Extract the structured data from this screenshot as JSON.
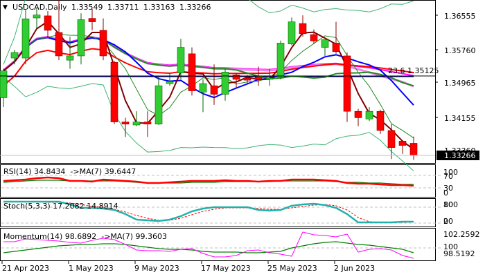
{
  "header": {
    "symbol": "USDCAD,Daily",
    "open": "1.33549",
    "high": "1.33711",
    "low": "1.33163",
    "close": "1.33266"
  },
  "price_axis": {
    "ticks": [
      "1.36555",
      "1.35760",
      "1.34965",
      "1.34155",
      "1.33266"
    ],
    "current_price": "1.33266",
    "hidden_tick": "1.33360"
  },
  "fib_label": "23.6 1.35125",
  "indicators": {
    "rsi": {
      "label": "RSI(14) 34.8434  ->MA(7) 39.6447",
      "levels": [
        "100",
        "70",
        "30",
        "0"
      ]
    },
    "stoch": {
      "label": "Stoch(5,3,3) 17.2082 14.8914",
      "levels": [
        "100",
        "80",
        "20",
        "0"
      ]
    },
    "momentum": {
      "label": "Momentum(14) 98.6892  ->MA(7) 99.3603",
      "levels": [
        "102.2592",
        "100",
        "98.5192"
      ]
    }
  },
  "date_axis": [
    "21 Apr 2023",
    "1 May 2023",
    "9 May 2023",
    "17 May 2023",
    "25 May 2023",
    "2 Jun 2023"
  ],
  "colors": {
    "bull": "#32cd32",
    "bear": "#ff0000",
    "ma_fast": "#800000",
    "ma_blue": "#0000ff",
    "ma_magenta": "#ff00ff",
    "ma_violet": "#ee82ee",
    "ma_navy": "#000080",
    "ma_red": "#ff0000",
    "ma_green": "#228b22",
    "bollinger": "#3cb371",
    "stoch_main": "#20b2aa",
    "stoch_signal": "#ff0000",
    "momentum": "#ff00ff",
    "momentum_ma": "#008000",
    "rsi": "#ff0000",
    "rsi_ma": "#008000"
  },
  "chart_data": {
    "type": "candlestick",
    "title": "USDCAD,Daily",
    "x": [
      "19 Apr",
      "20 Apr",
      "21 Apr",
      "24 Apr",
      "25 Apr",
      "26 Apr",
      "27 Apr",
      "28 Apr",
      "1 May",
      "2 May",
      "3 May",
      "4 May",
      "5 May",
      "8 May",
      "9 May",
      "10 May",
      "11 May",
      "12 May",
      "15 May",
      "16 May",
      "17 May",
      "18 May",
      "19 May",
      "22 May",
      "23 May",
      "24 May",
      "25 May",
      "26 May",
      "29 May",
      "30 May",
      "31 May",
      "1 Jun",
      "2 Jun",
      "5 Jun",
      "6 Jun",
      "7 Jun",
      "8 Jun",
      "9 Jun"
    ],
    "candles": [
      {
        "o": 1.3462,
        "h": 1.353,
        "l": 1.344,
        "c": 1.3525
      },
      {
        "o": 1.3555,
        "h": 1.3574,
        "l": 1.354,
        "c": 1.3568
      },
      {
        "o": 1.3555,
        "h": 1.3668,
        "l": 1.354,
        "c": 1.3647
      },
      {
        "o": 1.3649,
        "h": 1.3672,
        "l": 1.3624,
        "c": 1.3656
      },
      {
        "o": 1.3654,
        "h": 1.3665,
        "l": 1.3602,
        "c": 1.362
      },
      {
        "o": 1.3615,
        "h": 1.37,
        "l": 1.355,
        "c": 1.356
      },
      {
        "o": 1.355,
        "h": 1.3605,
        "l": 1.353,
        "c": 1.356
      },
      {
        "o": 1.356,
        "h": 1.366,
        "l": 1.354,
        "c": 1.3645
      },
      {
        "o": 1.3648,
        "h": 1.367,
        "l": 1.362,
        "c": 1.364
      },
      {
        "o": 1.362,
        "h": 1.3648,
        "l": 1.355,
        "c": 1.356
      },
      {
        "o": 1.3545,
        "h": 1.3548,
        "l": 1.34,
        "c": 1.3405
      },
      {
        "o": 1.3405,
        "h": 1.3415,
        "l": 1.337,
        "c": 1.34
      },
      {
        "o": 1.3398,
        "h": 1.343,
        "l": 1.3395,
        "c": 1.3405
      },
      {
        "o": 1.3405,
        "h": 1.343,
        "l": 1.337,
        "c": 1.34
      },
      {
        "o": 1.34,
        "h": 1.351,
        "l": 1.3398,
        "c": 1.349
      },
      {
        "o": 1.3495,
        "h": 1.352,
        "l": 1.349,
        "c": 1.35
      },
      {
        "o": 1.352,
        "h": 1.36,
        "l": 1.3505,
        "c": 1.358
      },
      {
        "o": 1.3565,
        "h": 1.358,
        "l": 1.3467,
        "c": 1.3478
      },
      {
        "o": 1.3475,
        "h": 1.3505,
        "l": 1.3428,
        "c": 1.3495
      },
      {
        "o": 1.349,
        "h": 1.354,
        "l": 1.3445,
        "c": 1.347
      },
      {
        "o": 1.347,
        "h": 1.353,
        "l": 1.3455,
        "c": 1.3522
      },
      {
        "o": 1.3515,
        "h": 1.352,
        "l": 1.3485,
        "c": 1.3505
      },
      {
        "o": 1.3508,
        "h": 1.3515,
        "l": 1.3495,
        "c": 1.3503
      },
      {
        "o": 1.351,
        "h": 1.3535,
        "l": 1.349,
        "c": 1.3505
      },
      {
        "o": 1.3505,
        "h": 1.353,
        "l": 1.349,
        "c": 1.3508
      },
      {
        "o": 1.351,
        "h": 1.3596,
        "l": 1.3505,
        "c": 1.359
      },
      {
        "o": 1.3588,
        "h": 1.365,
        "l": 1.3585,
        "c": 1.364
      },
      {
        "o": 1.3636,
        "h": 1.3655,
        "l": 1.3605,
        "c": 1.3612
      },
      {
        "o": 1.361,
        "h": 1.3622,
        "l": 1.3588,
        "c": 1.3595
      },
      {
        "o": 1.358,
        "h": 1.3598,
        "l": 1.356,
        "c": 1.3598
      },
      {
        "o": 1.359,
        "h": 1.364,
        "l": 1.3565,
        "c": 1.357
      },
      {
        "o": 1.356,
        "h": 1.3568,
        "l": 1.3405,
        "c": 1.343
      },
      {
        "o": 1.343,
        "h": 1.3436,
        "l": 1.3395,
        "c": 1.3415
      },
      {
        "o": 1.3412,
        "h": 1.344,
        "l": 1.3407,
        "c": 1.343
      },
      {
        "o": 1.343,
        "h": 1.3434,
        "l": 1.3377,
        "c": 1.3385
      },
      {
        "o": 1.3385,
        "h": 1.34,
        "l": 1.3318,
        "c": 1.3345
      },
      {
        "o": 1.336,
        "h": 1.3362,
        "l": 1.333,
        "c": 1.335
      },
      {
        "o": 1.3355,
        "h": 1.3371,
        "l": 1.3316,
        "c": 1.3327
      }
    ],
    "ylim": [
      1.331,
      1.37
    ],
    "yticks": [
      1.36555,
      1.3576,
      1.34965,
      1.34155,
      1.33266
    ],
    "xlabels": [
      "21 Apr 2023",
      "1 May 2023",
      "9 May 2023",
      "17 May 2023",
      "25 May 2023",
      "2 Jun 2023"
    ],
    "horizontal_lines": [
      {
        "label": "23.6",
        "value": 1.35125
      }
    ],
    "indicators": {
      "RSI(14)": 34.8434,
      "RSI_MA(7)": 39.6447,
      "Stoch_main": 17.2082,
      "Stoch_signal": 14.8914,
      "Momentum(14)": 98.6892,
      "Momentum_MA(7)": 99.3603
    }
  }
}
